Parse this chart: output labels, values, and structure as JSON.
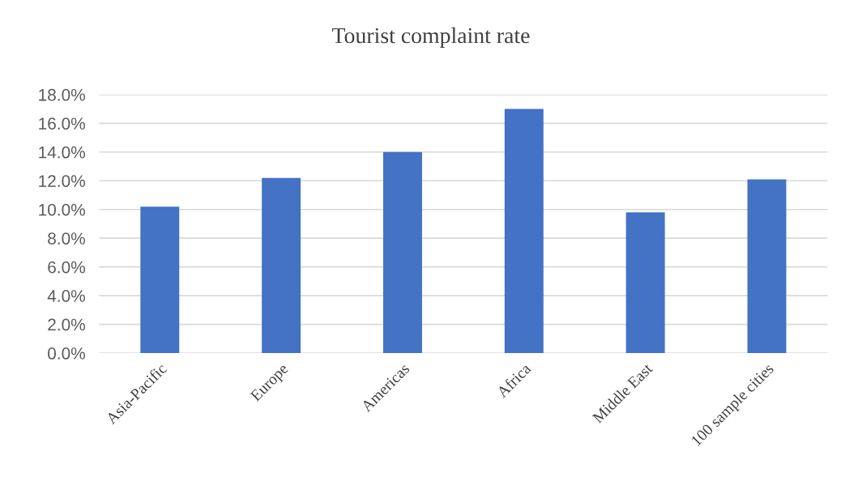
{
  "chart_data": {
    "type": "bar",
    "title": "Tourist complaint rate",
    "categories": [
      "Asia-Pacific",
      "Europe",
      "Americas",
      "Africa",
      "Middle East",
      "100 sample cities"
    ],
    "values": [
      10.2,
      12.2,
      14.0,
      17.0,
      9.8,
      12.1
    ],
    "color": "#4472c4",
    "ylim": [
      0,
      18
    ],
    "yticks": [
      {
        "value": 0,
        "label": "0.0%"
      },
      {
        "value": 2,
        "label": "2.0%"
      },
      {
        "value": 4,
        "label": "4.0%"
      },
      {
        "value": 6,
        "label": "6.0%"
      },
      {
        "value": 8,
        "label": "8.0%"
      },
      {
        "value": 10,
        "label": "10.0%"
      },
      {
        "value": 12,
        "label": "12.0%"
      },
      {
        "value": 14,
        "label": "14.0%"
      },
      {
        "value": 16,
        "label": "16.0%"
      },
      {
        "value": 18,
        "label": "18.0%"
      }
    ],
    "grid": "y",
    "legend": false
  }
}
